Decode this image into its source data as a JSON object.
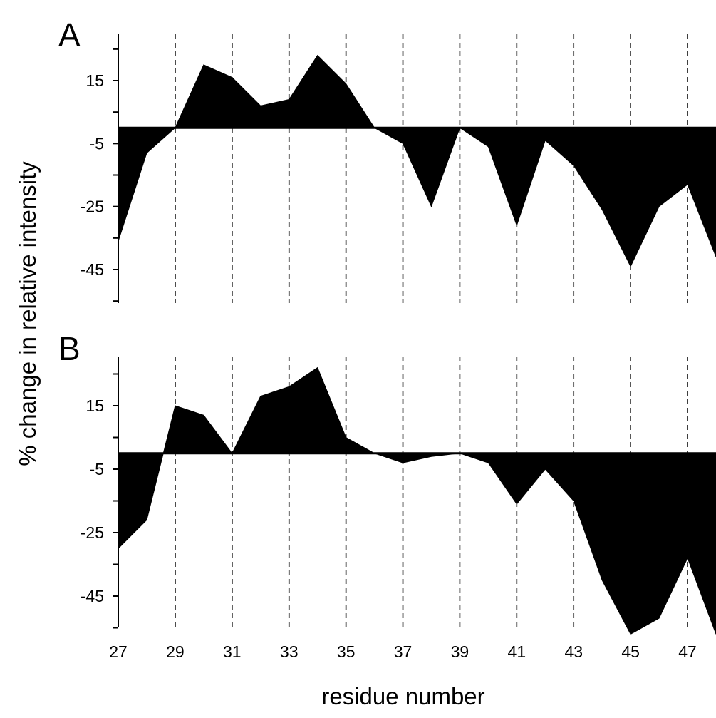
{
  "chart_data": {
    "type": "area",
    "xlabel": "residue number",
    "ylabel": "% change in relative intensity",
    "x_ticks": [
      27,
      29,
      31,
      33,
      35,
      37,
      39,
      41,
      43,
      45,
      47
    ],
    "y_ticks": [
      15,
      -5,
      -25,
      -45
    ],
    "xlim": [
      27,
      48
    ],
    "ylim": [
      -55,
      30
    ],
    "grid": "dashed vertical lines at odd residue numbers",
    "fill_color": "#000000",
    "panels": [
      {
        "label": "A",
        "x": [
          27,
          28,
          29,
          30,
          31,
          32,
          33,
          34,
          35,
          36,
          37,
          38,
          39,
          40,
          41,
          42,
          43,
          44,
          45,
          46,
          47,
          48
        ],
        "values": [
          -36,
          -8,
          0,
          20,
          16,
          7,
          9,
          23,
          14,
          0,
          -5,
          -25,
          0,
          -6,
          -31,
          -4,
          -12,
          -26,
          -44,
          -25,
          -18,
          -41
        ]
      },
      {
        "label": "B",
        "x": [
          27,
          28,
          29,
          30,
          31,
          32,
          33,
          34,
          35,
          36,
          37,
          38,
          39,
          40,
          41,
          42,
          43,
          44,
          45,
          46,
          47,
          48
        ],
        "values": [
          -30,
          -21,
          15,
          12,
          0,
          18,
          21,
          27,
          5,
          0,
          -3,
          -1,
          0,
          -3,
          -16,
          -5,
          -15,
          -40,
          -57,
          -52,
          -33,
          -57
        ]
      }
    ]
  }
}
